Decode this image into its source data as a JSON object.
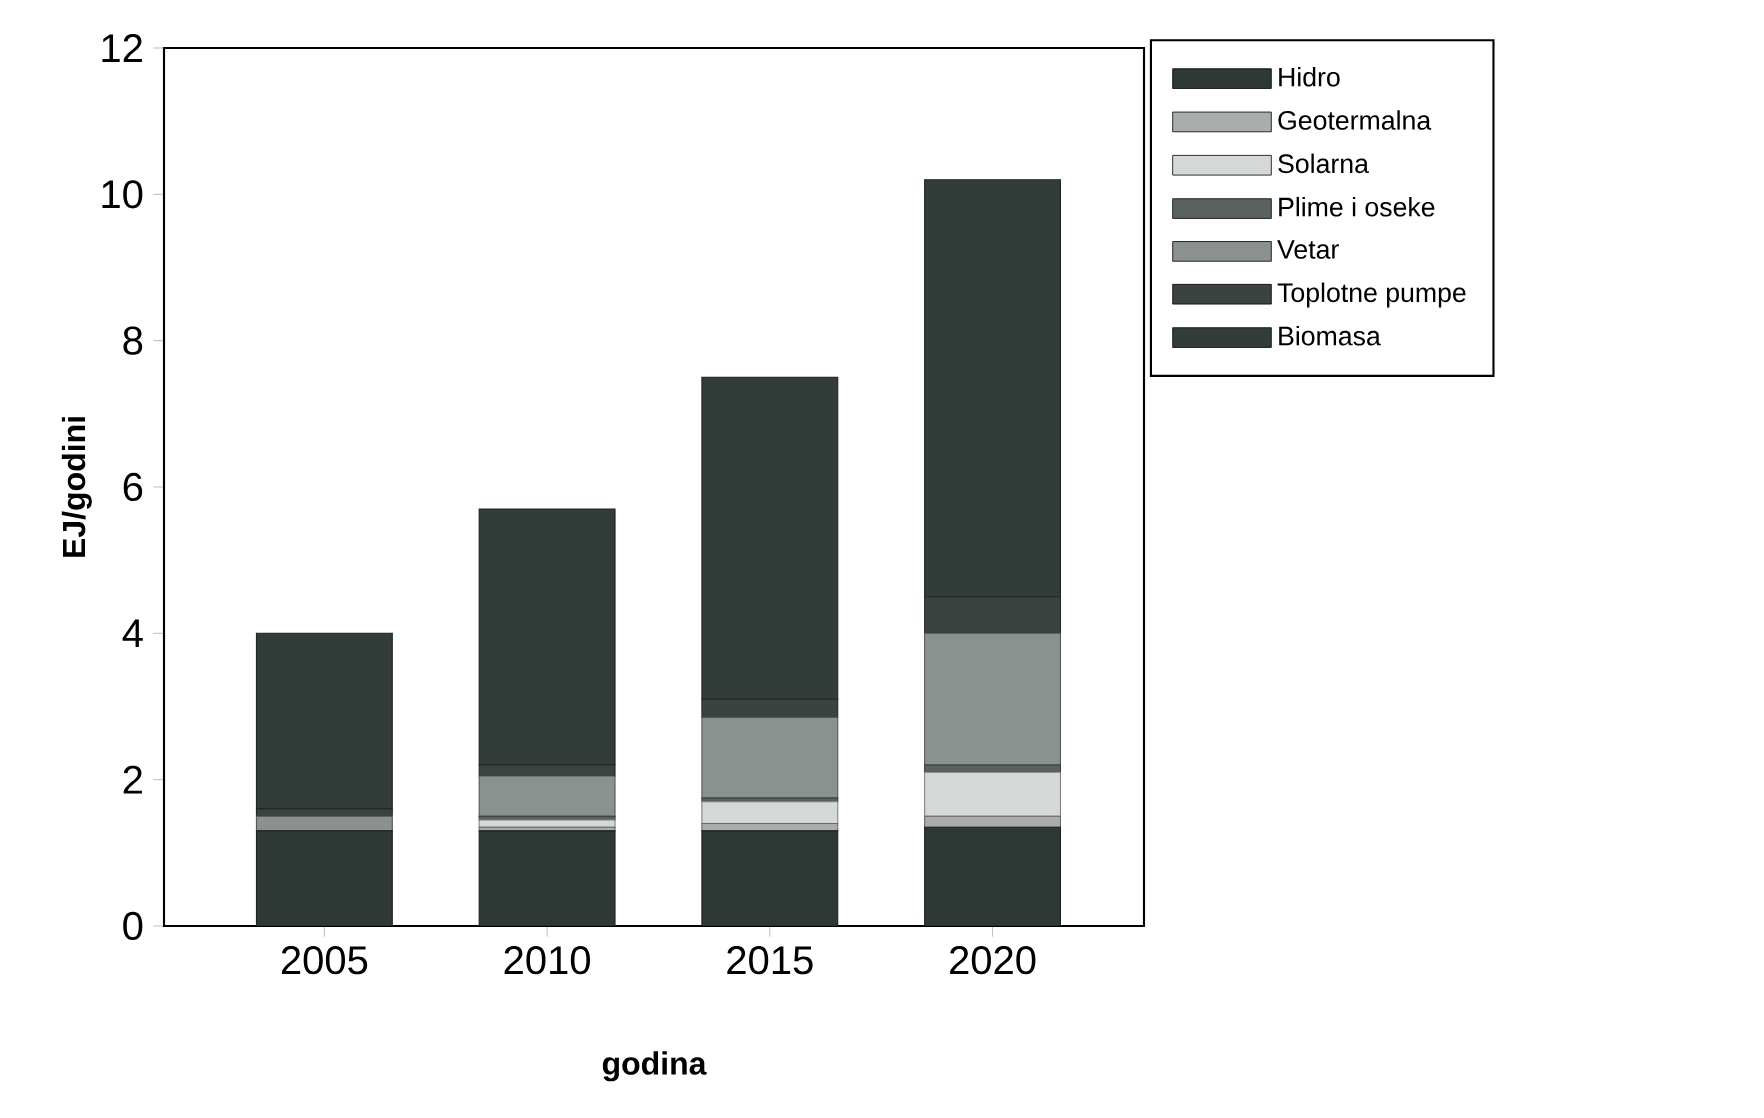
{
  "chart_data": {
    "type": "bar",
    "stacked": true,
    "xlabel": "godina",
    "ylabel": "EJ/godini",
    "categories": [
      "2005",
      "2010",
      "2015",
      "2020"
    ],
    "ylim": [
      0,
      12
    ],
    "yticks": [
      0,
      2,
      4,
      6,
      8,
      10,
      12
    ],
    "legend": "top right",
    "series": [
      {
        "name": "Hidro",
        "color": "#2e3835",
        "values": [
          1.3,
          1.3,
          1.3,
          1.35
        ]
      },
      {
        "name": "Geotermalna",
        "color": "#a9aeab",
        "values": [
          0,
          0.05,
          0.1,
          0.15
        ]
      },
      {
        "name": "Solarna",
        "color": "#d4d8d6",
        "values": [
          0,
          0.1,
          0.3,
          0.6
        ]
      },
      {
        "name": "Plime i oseke",
        "color": "#5a625f",
        "values": [
          0,
          0.05,
          0.05,
          0.1
        ]
      },
      {
        "name": "Vetar",
        "color": "#8a918e",
        "values": [
          0.2,
          0.55,
          1.1,
          1.8
        ]
      },
      {
        "name": "Toplotne pumpe",
        "color": "#3b4340",
        "values": [
          0.1,
          0.15,
          0.25,
          0.5
        ]
      },
      {
        "name": "Biomasa",
        "color": "#323c38",
        "values": [
          2.4,
          3.5,
          4.4,
          5.7
        ]
      }
    ]
  }
}
